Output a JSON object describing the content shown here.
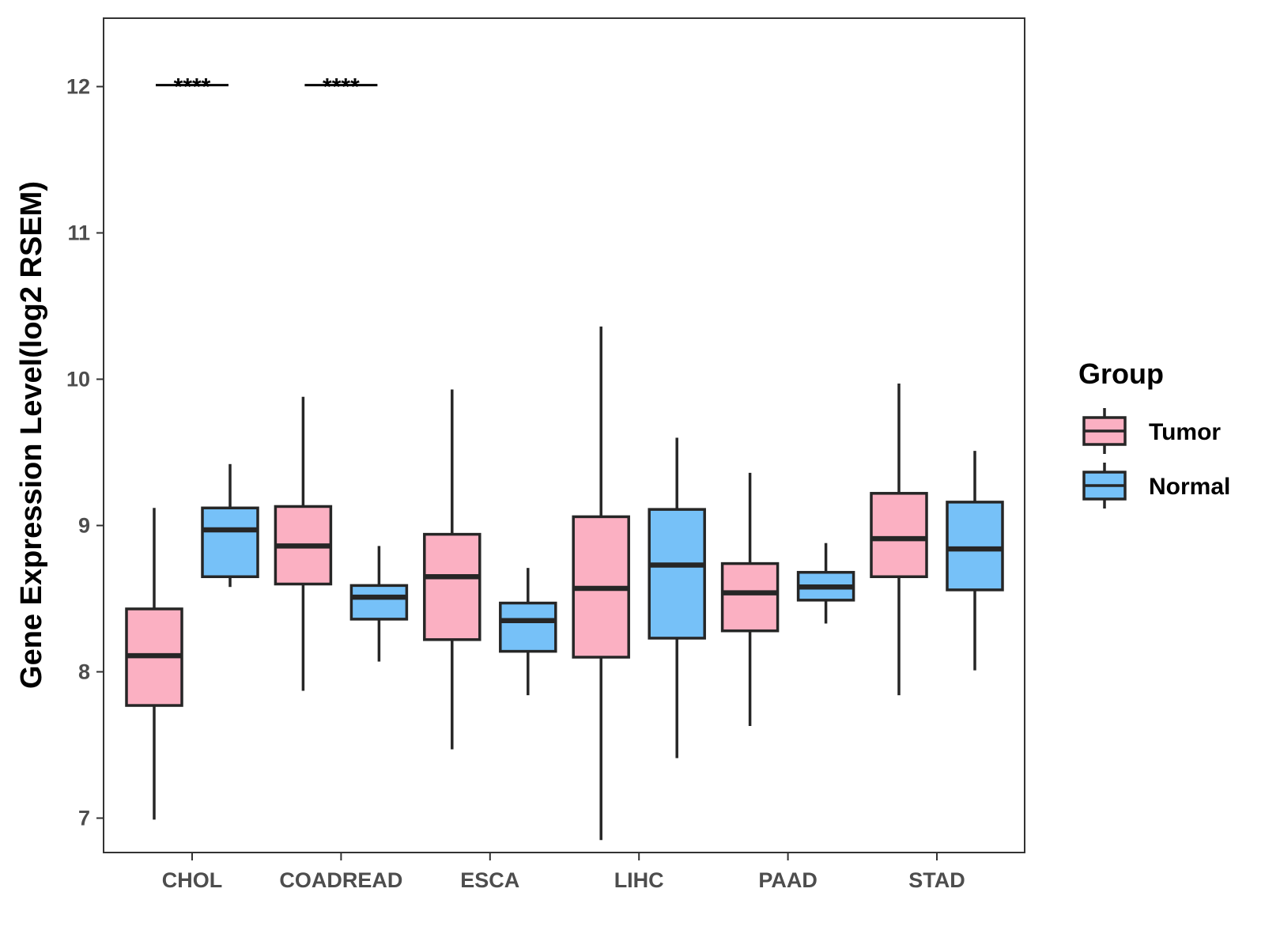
{
  "chart_data": {
    "type": "box",
    "title": "",
    "xlabel": "",
    "ylabel": "Gene Expression Level(log2 RSEM)",
    "ylim": [
      6.6,
      12.3
    ],
    "yticks": [
      7,
      8,
      9,
      10,
      11,
      12
    ],
    "ytick_labels": [
      "7",
      "8",
      "9",
      "10",
      "11",
      "12"
    ],
    "grid": false,
    "categories": [
      "CHOL",
      "COADREAD",
      "ESCA",
      "LIHC",
      "PAAD",
      "STAD"
    ],
    "legend": {
      "title": "Group",
      "placement": "right",
      "items": [
        {
          "label": "Tumor",
          "color": "#fbb0c2"
        },
        {
          "label": "Normal",
          "color": "#76c1f8"
        }
      ]
    },
    "series": [
      {
        "name": "Tumor",
        "color": "#fbb0c2",
        "boxes": [
          {
            "category": "CHOL",
            "min": 6.99,
            "q1": 7.77,
            "median": 8.11,
            "q3": 8.43,
            "max": 9.12
          },
          {
            "category": "COADREAD",
            "min": 7.87,
            "q1": 8.6,
            "median": 8.86,
            "q3": 9.13,
            "max": 9.88
          },
          {
            "category": "ESCA",
            "min": 7.47,
            "q1": 8.22,
            "median": 8.65,
            "q3": 8.94,
            "max": 9.93
          },
          {
            "category": "LIHC",
            "min": 6.85,
            "q1": 8.1,
            "median": 8.57,
            "q3": 9.06,
            "max": 10.36
          },
          {
            "category": "PAAD",
            "min": 7.63,
            "q1": 8.28,
            "median": 8.54,
            "q3": 8.74,
            "max": 9.36
          },
          {
            "category": "STAD",
            "min": 7.84,
            "q1": 8.65,
            "median": 8.91,
            "q3": 9.22,
            "max": 9.97
          }
        ]
      },
      {
        "name": "Normal",
        "color": "#76c1f8",
        "boxes": [
          {
            "category": "CHOL",
            "min": 8.58,
            "q1": 8.65,
            "median": 8.97,
            "q3": 9.12,
            "max": 9.42
          },
          {
            "category": "COADREAD",
            "min": 8.07,
            "q1": 8.36,
            "median": 8.51,
            "q3": 8.59,
            "max": 8.86
          },
          {
            "category": "ESCA",
            "min": 7.84,
            "q1": 8.14,
            "median": 8.35,
            "q3": 8.47,
            "max": 8.71
          },
          {
            "category": "LIHC",
            "min": 7.41,
            "q1": 8.23,
            "median": 8.73,
            "q3": 9.11,
            "max": 9.6
          },
          {
            "category": "PAAD",
            "min": 8.33,
            "q1": 8.49,
            "median": 8.58,
            "q3": 8.68,
            "max": 8.88
          },
          {
            "category": "STAD",
            "min": 8.01,
            "q1": 8.56,
            "median": 8.84,
            "q3": 9.16,
            "max": 9.51
          }
        ]
      }
    ],
    "annotations": [
      {
        "category": "CHOL",
        "text": "****",
        "y": 12.01
      },
      {
        "category": "COADREAD",
        "text": "****",
        "y": 12.01
      }
    ]
  }
}
